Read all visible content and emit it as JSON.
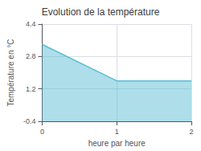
{
  "chart_data": {
    "type": "line",
    "title": "Evolution de la température",
    "xlabel": "heure par heure",
    "ylabel": "Température en °C",
    "x": [
      0,
      1,
      2
    ],
    "values": [
      3.4,
      1.6,
      1.6
    ],
    "color": "#5bbdd6",
    "xlim": [
      0,
      2
    ],
    "xticks": [
      0,
      1,
      2
    ],
    "ylim": [
      -0.4,
      4.4
    ],
    "yticks": [
      -0.4,
      1.2,
      2.8,
      4.4
    ],
    "grid": true
  }
}
